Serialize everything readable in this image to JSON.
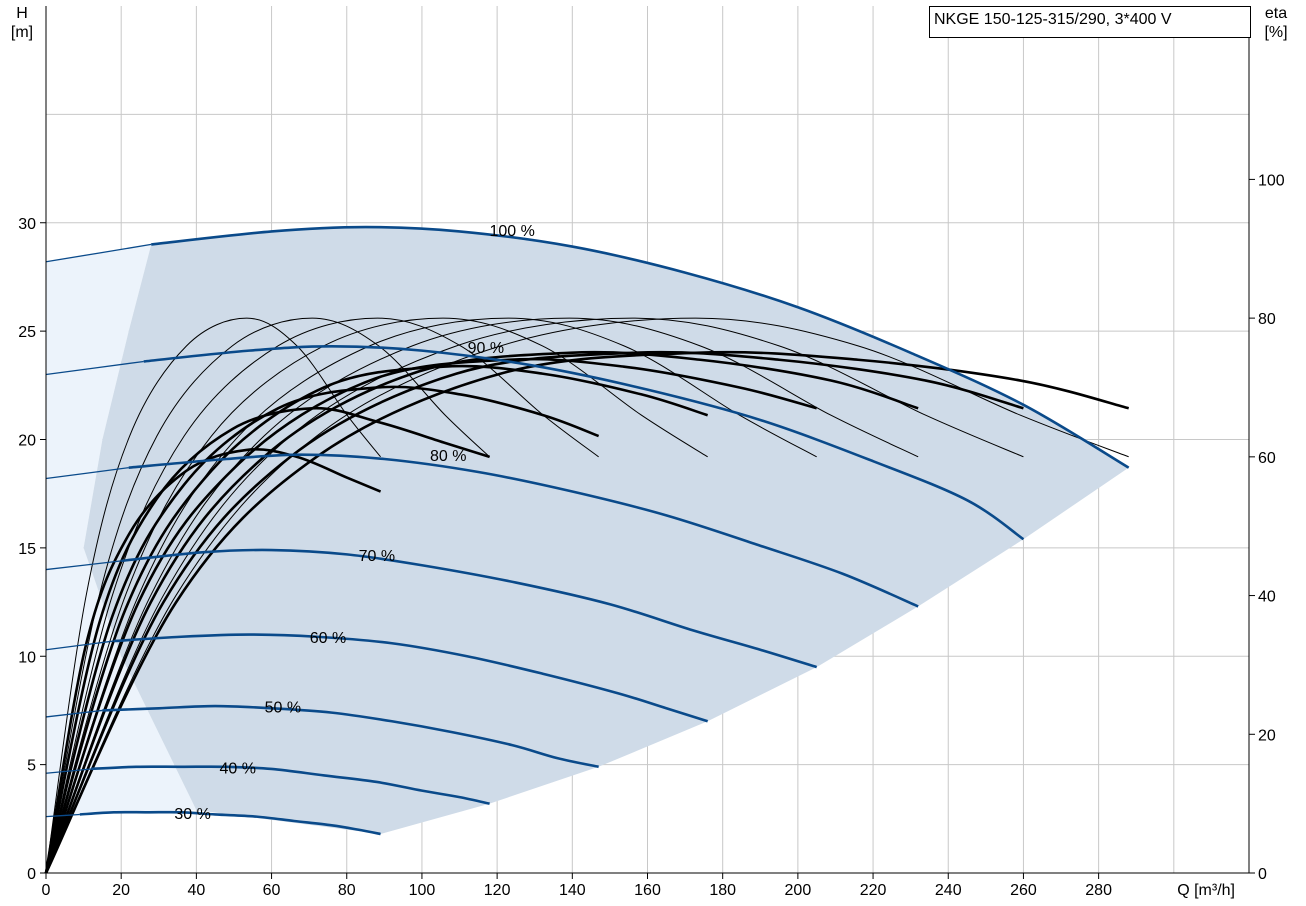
{
  "title": "NKGE 150-125-315/290, 3*400 V",
  "colors": {
    "speed_curve": "#0a4a8a",
    "eta_curve": "#000000",
    "operating_area": "#cfdbe8",
    "light_area": "#ecf3fb",
    "grid": "#c8c8c8"
  },
  "chart_data": {
    "type": "line",
    "title": "NKGE 150-125-315/290, 3*400 V",
    "xlabel": "Q [m³/h]",
    "ylabel": "H\n[m]",
    "y2label": "eta\n[%]",
    "xlim": [
      0,
      320
    ],
    "ylim": [
      0,
      40
    ],
    "y2lim": [
      0,
      125
    ],
    "x_ticks": [
      "0",
      "20",
      "40",
      "60",
      "80",
      "100",
      "120",
      "140",
      "160",
      "180",
      "200",
      "220",
      "240",
      "260",
      "280"
    ],
    "y_ticks": [
      "0",
      "5",
      "10",
      "15",
      "20",
      "25",
      "30"
    ],
    "y2_ticks": [
      "0",
      "20",
      "40",
      "60",
      "80",
      "100"
    ],
    "grid": true,
    "head_curves": [
      {
        "label": "100 %",
        "label_x": 124,
        "label_y": 29.4,
        "qmax": 288,
        "points": [
          [
            0,
            28.2
          ],
          [
            28,
            29.0
          ],
          [
            60,
            29.6
          ],
          [
            85,
            29.8
          ],
          [
            110,
            29.6
          ],
          [
            140,
            28.9
          ],
          [
            170,
            27.7
          ],
          [
            200,
            26.1
          ],
          [
            230,
            24.0
          ],
          [
            260,
            21.6
          ],
          [
            288,
            18.7
          ]
        ]
      },
      {
        "label": "90 %",
        "label_x": 117,
        "label_y": 24.0,
        "qmax": 260,
        "points": [
          [
            0,
            23.0
          ],
          [
            26,
            23.6
          ],
          [
            54,
            24.1
          ],
          [
            76,
            24.3
          ],
          [
            100,
            24.1
          ],
          [
            130,
            23.4
          ],
          [
            160,
            22.3
          ],
          [
            190,
            20.9
          ],
          [
            220,
            19.0
          ],
          [
            245,
            17.2
          ],
          [
            260,
            15.4
          ]
        ]
      },
      {
        "label": "80 %",
        "label_x": 107,
        "label_y": 19.0,
        "qmax": 232,
        "points": [
          [
            0,
            18.2
          ],
          [
            22,
            18.7
          ],
          [
            48,
            19.1
          ],
          [
            68,
            19.3
          ],
          [
            90,
            19.1
          ],
          [
            115,
            18.5
          ],
          [
            140,
            17.6
          ],
          [
            165,
            16.5
          ],
          [
            190,
            15.1
          ],
          [
            212,
            13.8
          ],
          [
            232,
            12.3
          ]
        ]
      },
      {
        "label": "70 %",
        "label_x": 88,
        "label_y": 14.4,
        "qmax": 205,
        "points": [
          [
            0,
            14.0
          ],
          [
            20,
            14.4
          ],
          [
            42,
            14.8
          ],
          [
            60,
            14.9
          ],
          [
            80,
            14.7
          ],
          [
            100,
            14.2
          ],
          [
            125,
            13.4
          ],
          [
            150,
            12.4
          ],
          [
            172,
            11.2
          ],
          [
            190,
            10.3
          ],
          [
            205,
            9.5
          ]
        ]
      },
      {
        "label": "60 %",
        "label_x": 75,
        "label_y": 10.6,
        "qmax": 176,
        "points": [
          [
            0,
            10.3
          ],
          [
            18,
            10.7
          ],
          [
            36,
            10.9
          ],
          [
            54,
            11.0
          ],
          [
            72,
            10.9
          ],
          [
            92,
            10.6
          ],
          [
            112,
            10.0
          ],
          [
            132,
            9.2
          ],
          [
            152,
            8.3
          ],
          [
            165,
            7.6
          ],
          [
            176,
            7.0
          ]
        ]
      },
      {
        "label": "50 %",
        "label_x": 63,
        "label_y": 7.4,
        "qmax": 147,
        "points": [
          [
            0,
            7.2
          ],
          [
            15,
            7.5
          ],
          [
            30,
            7.6
          ],
          [
            45,
            7.7
          ],
          [
            60,
            7.6
          ],
          [
            76,
            7.4
          ],
          [
            92,
            7.0
          ],
          [
            108,
            6.5
          ],
          [
            124,
            5.9
          ],
          [
            136,
            5.3
          ],
          [
            147,
            4.9
          ]
        ]
      },
      {
        "label": "40 %",
        "label_x": 51,
        "label_y": 4.6,
        "qmax": 118,
        "points": [
          [
            0,
            4.6
          ],
          [
            12,
            4.8
          ],
          [
            24,
            4.9
          ],
          [
            36,
            4.9
          ],
          [
            48,
            4.9
          ],
          [
            60,
            4.8
          ],
          [
            74,
            4.5
          ],
          [
            88,
            4.2
          ],
          [
            100,
            3.8
          ],
          [
            110,
            3.5
          ],
          [
            118,
            3.2
          ]
        ]
      },
      {
        "label": "30 %",
        "label_x": 39,
        "label_y": 2.5,
        "qmax": 89,
        "points": [
          [
            0,
            2.6
          ],
          [
            9,
            2.7
          ],
          [
            18,
            2.8
          ],
          [
            27,
            2.8
          ],
          [
            36,
            2.8
          ],
          [
            45,
            2.7
          ],
          [
            56,
            2.6
          ],
          [
            66,
            2.4
          ],
          [
            76,
            2.2
          ],
          [
            83,
            2.0
          ],
          [
            89,
            1.8
          ]
        ]
      }
    ],
    "eta_curves_thin": [
      {
        "qmax": 89,
        "eta": [
          0,
          40,
          63,
          76,
          80,
          76,
          66,
          60
        ]
      },
      {
        "qmax": 118,
        "eta": [
          0,
          40,
          63,
          76,
          80,
          76,
          66,
          60
        ]
      },
      {
        "qmax": 147,
        "eta": [
          0,
          40,
          63,
          76,
          80,
          76,
          66,
          60
        ]
      },
      {
        "qmax": 176,
        "eta": [
          0,
          40,
          63,
          76,
          80,
          76,
          66,
          60
        ]
      },
      {
        "qmax": 205,
        "eta": [
          0,
          40,
          63,
          76,
          80,
          76,
          66,
          60
        ]
      },
      {
        "qmax": 232,
        "eta": [
          0,
          40,
          63,
          76,
          80,
          76,
          66,
          60
        ]
      },
      {
        "qmax": 260,
        "eta": [
          0,
          40,
          63,
          76,
          80,
          76,
          66,
          60
        ]
      },
      {
        "qmax": 288,
        "eta": [
          0,
          40,
          63,
          76,
          80,
          76,
          66,
          60
        ]
      }
    ],
    "eta_curves_thick": [
      {
        "qmax": 89,
        "eta": [
          0,
          33,
          49,
          58,
          61,
          60,
          57,
          55
        ]
      },
      {
        "qmax": 118,
        "eta": [
          0,
          36,
          54,
          64,
          67,
          65,
          62,
          60
        ]
      },
      {
        "qmax": 147,
        "eta": [
          0,
          37,
          56,
          67,
          70,
          69,
          66,
          63
        ]
      },
      {
        "qmax": 176,
        "eta": [
          0,
          38,
          58,
          70,
          73,
          72,
          69,
          66
        ]
      },
      {
        "qmax": 205,
        "eta": [
          0,
          39,
          59,
          71,
          74,
          73,
          70,
          67
        ]
      },
      {
        "qmax": 232,
        "eta": [
          0,
          39,
          60,
          72,
          75,
          74,
          71,
          67
        ]
      },
      {
        "qmax": 260,
        "eta": [
          0,
          39,
          60,
          72,
          75,
          74,
          71,
          67
        ]
      },
      {
        "qmax": 288,
        "eta": [
          0,
          39,
          60,
          72,
          75,
          74,
          71,
          67
        ]
      }
    ],
    "eta_shape_fractions": [
      0,
      0.12,
      0.25,
      0.42,
      0.6,
      0.75,
      0.9,
      1.0
    ],
    "operating_area": [
      [
        28,
        29.0
      ],
      [
        60,
        29.6
      ],
      [
        85,
        29.8
      ],
      [
        110,
        29.6
      ],
      [
        140,
        28.9
      ],
      [
        170,
        27.7
      ],
      [
        200,
        26.1
      ],
      [
        230,
        24.0
      ],
      [
        260,
        21.6
      ],
      [
        288,
        18.7
      ],
      [
        260,
        15.4
      ],
      [
        232,
        12.3
      ],
      [
        205,
        9.5
      ],
      [
        176,
        7.0
      ],
      [
        147,
        4.9
      ],
      [
        118,
        3.2
      ],
      [
        89,
        1.8
      ],
      [
        40,
        2.9
      ],
      [
        20,
        10.0
      ],
      [
        10,
        15.0
      ],
      [
        15,
        20.0
      ],
      [
        22,
        25.0
      ]
    ],
    "light_area": [
      [
        0,
        28.2
      ],
      [
        28,
        29.0
      ],
      [
        22,
        25.0
      ],
      [
        15,
        20.0
      ],
      [
        10,
        15.0
      ],
      [
        20,
        10.0
      ],
      [
        40,
        2.9
      ],
      [
        9,
        2.7
      ],
      [
        0,
        2.6
      ]
    ]
  }
}
